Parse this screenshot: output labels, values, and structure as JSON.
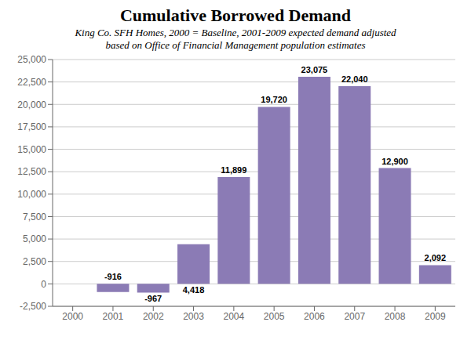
{
  "chart_data": {
    "type": "bar",
    "title": "Cumulative Borrowed Demand",
    "subtitle": [
      "King Co. SFH Homes,  2000 = Baseline,  2001-2009 expected demand adjusted",
      "based on Office of Financial Management population estimates"
    ],
    "categories": [
      "2000",
      "2001",
      "2002",
      "2003",
      "2004",
      "2005",
      "2006",
      "2007",
      "2008",
      "2009"
    ],
    "values": [
      0,
      -916,
      -967,
      4418,
      11899,
      19720,
      23075,
      22040,
      12900,
      2092
    ],
    "value_labels": [
      null,
      "-916",
      "-967",
      "4,418",
      "11,899",
      "19,720",
      "23,075",
      "22,040",
      "12,900",
      "2,092"
    ],
    "data_labels": true,
    "color": "#8B7BB5",
    "ylim": [
      -2500,
      25000
    ],
    "yticks": [
      {
        "value": -2500,
        "label": "-2,500"
      },
      0,
      {
        "value": 2500,
        "label": "2,500"
      },
      {
        "value": 5000,
        "label": "5,000"
      },
      {
        "value": 7500,
        "label": "7,500"
      },
      {
        "value": 10000,
        "label": "10,000"
      },
      {
        "value": 12500,
        "label": "12,500"
      },
      {
        "value": 15000,
        "label": "15,000"
      },
      {
        "value": 17500,
        "label": "17,500"
      },
      {
        "value": 20000,
        "label": "20,000"
      },
      {
        "value": 22500,
        "label": "22,500"
      },
      {
        "value": 25000,
        "label": "25,000"
      }
    ],
    "grid": true
  }
}
